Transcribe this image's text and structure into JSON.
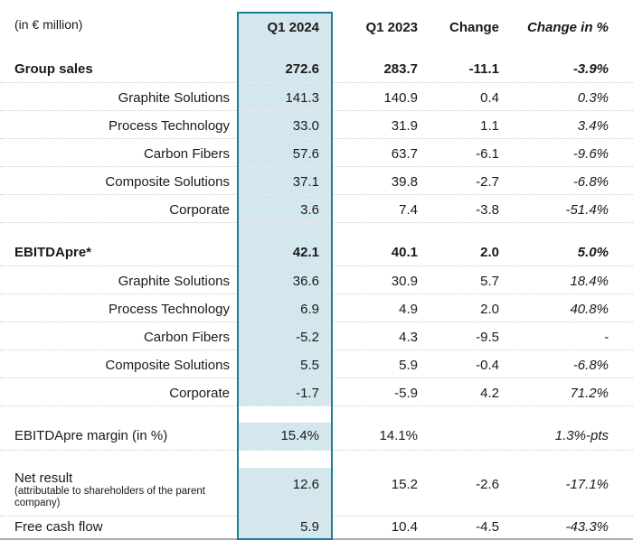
{
  "table": {
    "unit_label": "(in € million)",
    "header": {
      "q1_2024": "Q1 2024",
      "q1_2023": "Q1 2023",
      "change": "Change",
      "change_pct": "Change in %"
    },
    "rows": [
      {
        "label": "Group sales",
        "q1_2024": "272.6",
        "q1_2023": "283.7",
        "change": "-11.1",
        "change_pct": "-3.9%"
      },
      {
        "label": "Graphite Solutions",
        "q1_2024": "141.3",
        "q1_2023": "140.9",
        "change": "0.4",
        "change_pct": "0.3%"
      },
      {
        "label": "Process Technology",
        "q1_2024": "33.0",
        "q1_2023": "31.9",
        "change": "1.1",
        "change_pct": "3.4%"
      },
      {
        "label": "Carbon Fibers",
        "q1_2024": "57.6",
        "q1_2023": "63.7",
        "change": "-6.1",
        "change_pct": "-9.6%"
      },
      {
        "label": "Composite Solutions",
        "q1_2024": "37.1",
        "q1_2023": "39.8",
        "change": "-2.7",
        "change_pct": "-6.8%"
      },
      {
        "label": "Corporate",
        "q1_2024": "3.6",
        "q1_2023": "7.4",
        "change": "-3.8",
        "change_pct": "-51.4%"
      },
      {
        "label": "EBITDApre*",
        "q1_2024": "42.1",
        "q1_2023": "40.1",
        "change": "2.0",
        "change_pct": "5.0%"
      },
      {
        "label": "Graphite Solutions",
        "q1_2024": "36.6",
        "q1_2023": "30.9",
        "change": "5.7",
        "change_pct": "18.4%"
      },
      {
        "label": "Process Technology",
        "q1_2024": "6.9",
        "q1_2023": "4.9",
        "change": "2.0",
        "change_pct": "40.8%"
      },
      {
        "label": "Carbon Fibers",
        "q1_2024": "-5.2",
        "q1_2023": "4.3",
        "change": "-9.5",
        "change_pct": "-"
      },
      {
        "label": "Composite Solutions",
        "q1_2024": "5.5",
        "q1_2023": "5.9",
        "change": "-0.4",
        "change_pct": "-6.8%"
      },
      {
        "label": "Corporate",
        "q1_2024": "-1.7",
        "q1_2023": "-5.9",
        "change": "4.2",
        "change_pct": "71.2%"
      },
      {
        "label": "EBITDApre margin (in %)",
        "q1_2024": "15.4%",
        "q1_2023": "14.1%",
        "change": "",
        "change_pct": "1.3%-pts"
      },
      {
        "label": "Net result",
        "note": "(attributable to shareholders of the parent company)",
        "q1_2024": "12.6",
        "q1_2023": "15.2",
        "change": "-2.6",
        "change_pct": "-17.1%"
      },
      {
        "label": "Free cash flow",
        "q1_2024": "5.9",
        "q1_2023": "10.4",
        "change": "-4.5",
        "change_pct": "-43.3%"
      }
    ]
  },
  "colors": {
    "highlight_fill": "#d5e7ee",
    "highlight_border": "#1b7e99"
  }
}
